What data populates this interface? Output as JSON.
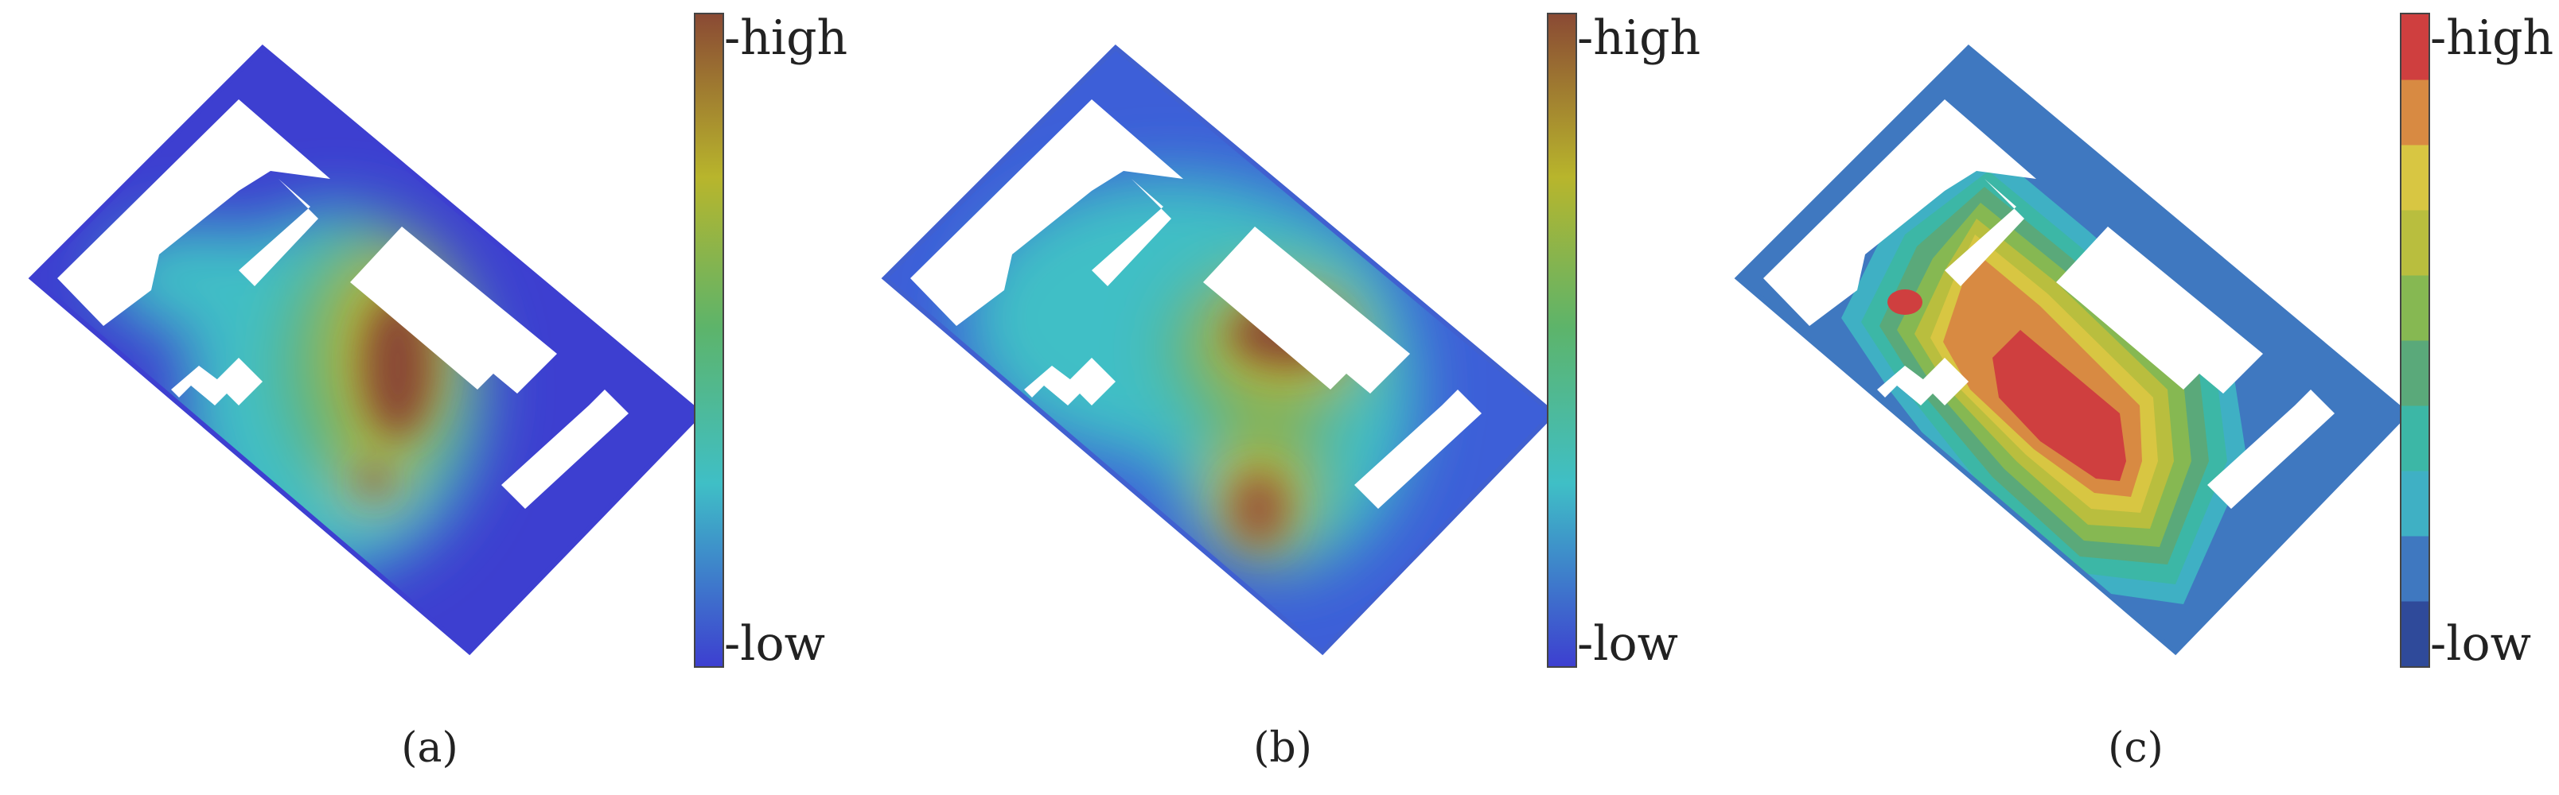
{
  "panels": [
    {
      "caption": "(a)",
      "high_label": "-high",
      "low_label": "-low",
      "colormap": "continuous"
    },
    {
      "caption": "(b)",
      "high_label": "-high",
      "low_label": "-low",
      "colormap": "continuous"
    },
    {
      "caption": "(c)",
      "high_label": "-high",
      "low_label": "-low",
      "colormap": "discrete"
    }
  ],
  "colors": {
    "low": "#3d3fd0",
    "cyan": "#3fbfc6",
    "green": "#5db46a",
    "yellow": "#b8b52c",
    "high": "#8a4a34",
    "discrete": [
      "#2f4a9a",
      "#3f78c0",
      "#3fb0c4",
      "#3cb7a6",
      "#5aa97a",
      "#86b852",
      "#b9be3e",
      "#d8c642",
      "#d88a42",
      "#cf3f3f"
    ]
  }
}
